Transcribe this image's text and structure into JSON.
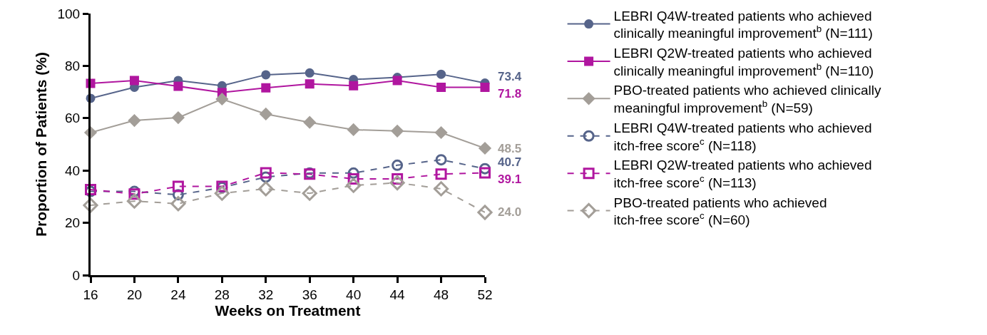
{
  "chart_data": {
    "type": "line",
    "xlabel": "Weeks on Treatment",
    "ylabel": "Proportion of Patients (%)",
    "x": [
      16,
      20,
      24,
      28,
      32,
      36,
      40,
      44,
      48,
      52
    ],
    "xlim": [
      16,
      52
    ],
    "xticks": [
      16,
      20,
      24,
      28,
      32,
      36,
      40,
      44,
      48,
      52
    ],
    "ylim": [
      0,
      100
    ],
    "yticks": [
      0,
      20,
      40,
      60,
      80,
      100
    ],
    "grid": false,
    "legend": "right",
    "series": [
      {
        "name": "LEBRI Q4W-treated patients who achieved\nclinically meaningful improvement$^{b}$ (N=111)",
        "color": "#56648a",
        "marker": "circle",
        "line_style": "solid",
        "values": [
          67.6,
          71.8,
          74.4,
          72.4,
          76.6,
          77.3,
          74.8,
          75.6,
          76.8,
          73.4
        ],
        "value_labels": [
          null,
          null,
          null,
          null,
          null,
          null,
          null,
          null,
          null,
          "73.4"
        ]
      },
      {
        "name": "LEBRI Q2W-treated patients who achieved\nclinically meaningful improvement$^{b}$ (N=110)",
        "color": "#b0169f",
        "marker": "square",
        "line_style": "solid",
        "values": [
          73.3,
          74.4,
          72.2,
          69.8,
          71.6,
          73.1,
          72.4,
          74.4,
          71.8,
          71.8
        ],
        "value_labels": [
          null,
          null,
          null,
          null,
          null,
          null,
          null,
          null,
          null,
          "71.8"
        ]
      },
      {
        "name": "PBO-treated patients who achieved clinically\nmeaningful improvement$^{b}$ (N=59)",
        "color": "#a39e98",
        "marker": "diamond",
        "line_style": "solid",
        "values": [
          54.5,
          59.1,
          60.2,
          67.3,
          61.6,
          58.4,
          55.6,
          55.1,
          54.5,
          48.5
        ],
        "value_labels": [
          null,
          null,
          null,
          null,
          null,
          null,
          null,
          null,
          null,
          "48.5"
        ]
      },
      {
        "name": "LEBRI Q4W-treated patients who achieved\nitch-free score$^{c}$ (N=118)",
        "color": "#56648a",
        "marker": "circle",
        "line_style": "dashed",
        "values": [
          32.0,
          32.0,
          30.7,
          33.5,
          37.5,
          39.0,
          39.0,
          42.0,
          44.1,
          40.7
        ],
        "value_labels": [
          null,
          null,
          null,
          null,
          null,
          null,
          null,
          null,
          null,
          "40.7"
        ]
      },
      {
        "name": "LEBRI Q2W-treated patients who achieved\nitch-free score$^{c}$ (N=113)",
        "color": "#b0169f",
        "marker": "square",
        "line_style": "dashed",
        "values": [
          32.7,
          31.0,
          33.9,
          33.9,
          39.1,
          38.6,
          36.8,
          36.8,
          38.6,
          39.1
        ],
        "value_labels": [
          null,
          null,
          null,
          null,
          null,
          null,
          null,
          null,
          null,
          "39.1"
        ]
      },
      {
        "name": "PBO-treated patients who achieved\nitch-free score$^{c}$ (N=60)",
        "color": "#a39e98",
        "marker": "diamond",
        "line_style": "dashed",
        "values": [
          26.7,
          28.3,
          27.3,
          31.3,
          33.0,
          31.3,
          34.3,
          35.3,
          33.0,
          24.0
        ],
        "value_labels": [
          null,
          null,
          null,
          null,
          null,
          null,
          null,
          null,
          null,
          "24.0"
        ]
      }
    ]
  }
}
